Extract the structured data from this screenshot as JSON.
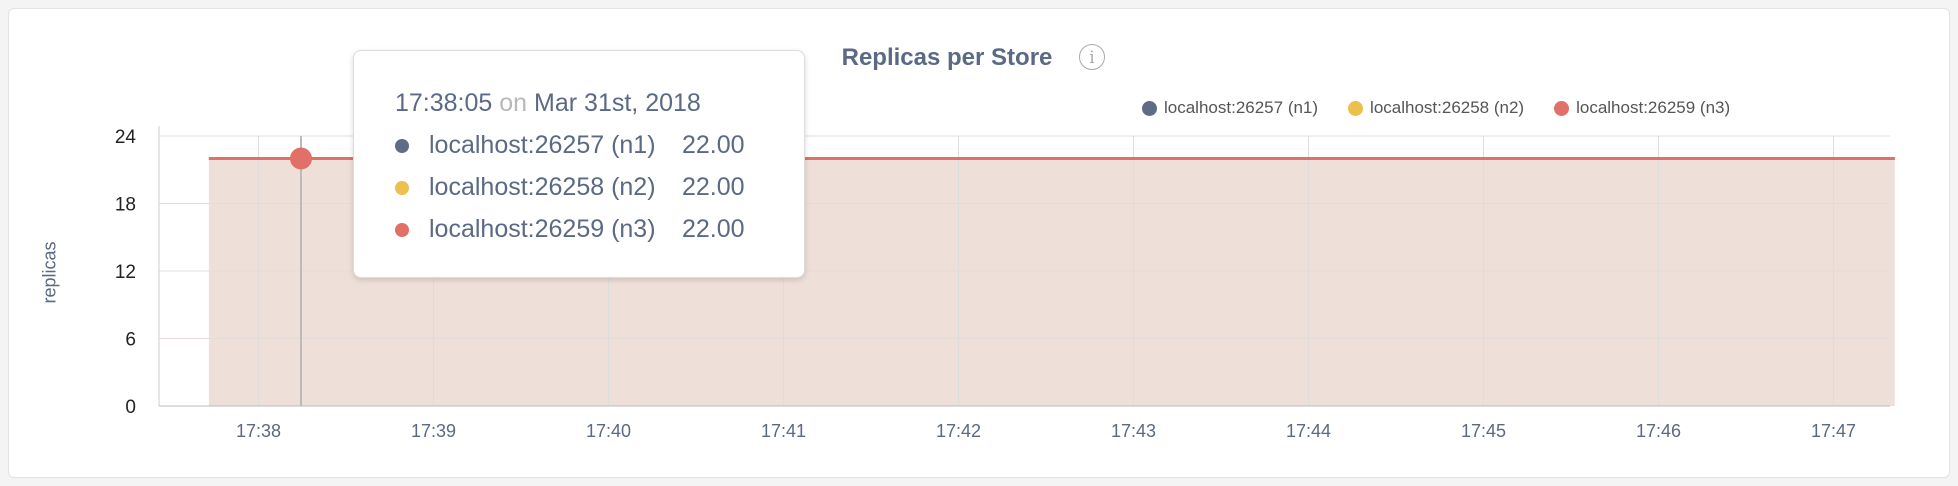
{
  "chart_data": {
    "type": "area",
    "title": "Replicas per Store",
    "ylabel": "replicas",
    "xlabel": "",
    "ylim": [
      0,
      24
    ],
    "yticks": [
      "0",
      "6",
      "12",
      "18",
      "24"
    ],
    "xticks": [
      "17:38",
      "17:39",
      "17:40",
      "17:41",
      "17:42",
      "17:43",
      "17:44",
      "17:45",
      "17:46",
      "17:47"
    ],
    "grid": true,
    "legend_position": "top-right",
    "x_range": [
      "17:37:43",
      "17:47:21"
    ],
    "series": [
      {
        "name": "localhost:26257 (n1)",
        "color": "#5f6c87",
        "values": [
          22,
          22
        ]
      },
      {
        "name": "localhost:26258 (n2)",
        "color": "#ebc04c",
        "values": [
          22,
          22
        ]
      },
      {
        "name": "localhost:26259 (n3)",
        "color": "#e07068",
        "values": [
          22,
          22
        ]
      }
    ],
    "fill_color": "#efdfd9",
    "hover": {
      "time": "17:38:05",
      "on": "on",
      "date": "Mar 31st, 2018",
      "rows": [
        {
          "name": "localhost:26257 (n1)",
          "value": "22.00"
        },
        {
          "name": "localhost:26258 (n2)",
          "value": "22.00"
        },
        {
          "name": "localhost:26259 (n3)",
          "value": "22.00"
        }
      ]
    }
  },
  "info_icon": "info-icon"
}
